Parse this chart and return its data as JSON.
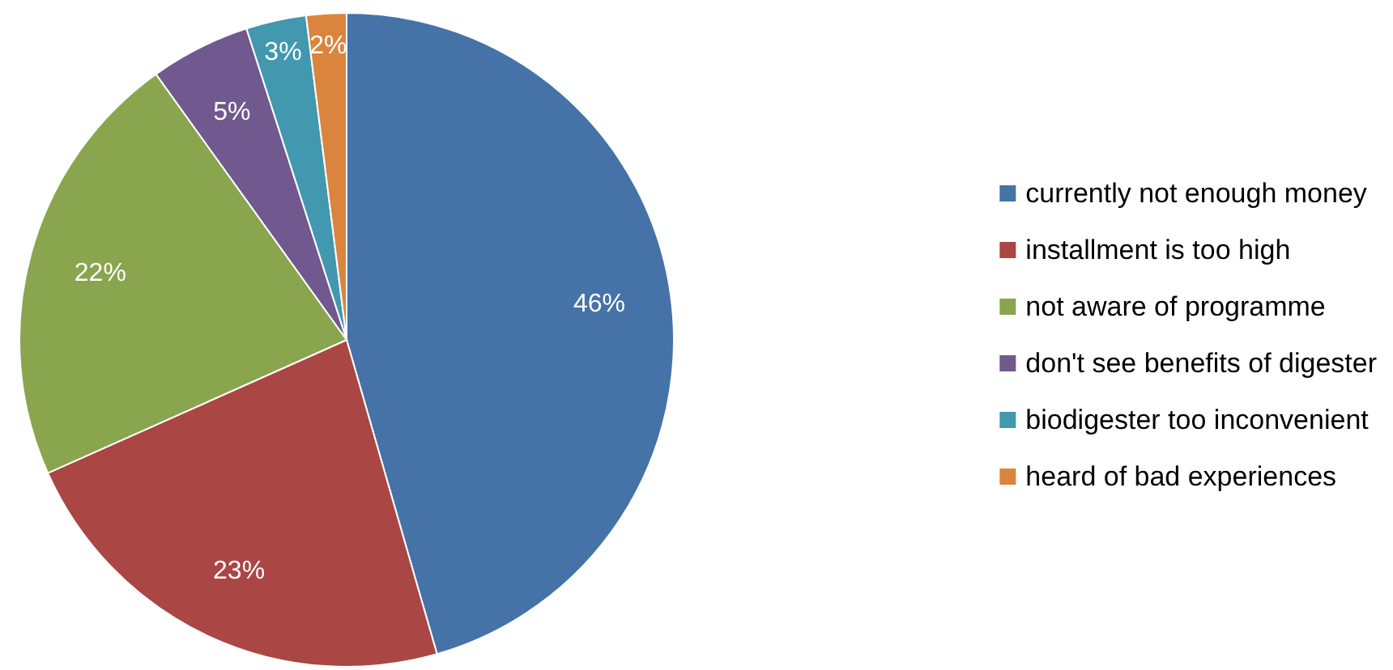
{
  "chart_data": {
    "type": "pie",
    "categories": [
      "currently not enough money",
      "installment is too high",
      "not aware of programme",
      "don't see benefits of digester",
      "biodigester too inconvenient",
      "heard of bad experiences"
    ],
    "values": [
      46,
      23,
      22,
      5,
      3,
      2
    ],
    "colors": [
      "#4572a7",
      "#aa4643",
      "#89a54e",
      "#71588f",
      "#4198af",
      "#db843d"
    ],
    "value_labels": [
      "46%",
      "23%",
      "22%",
      "5%",
      "3%",
      "2%"
    ],
    "legend": "right"
  }
}
